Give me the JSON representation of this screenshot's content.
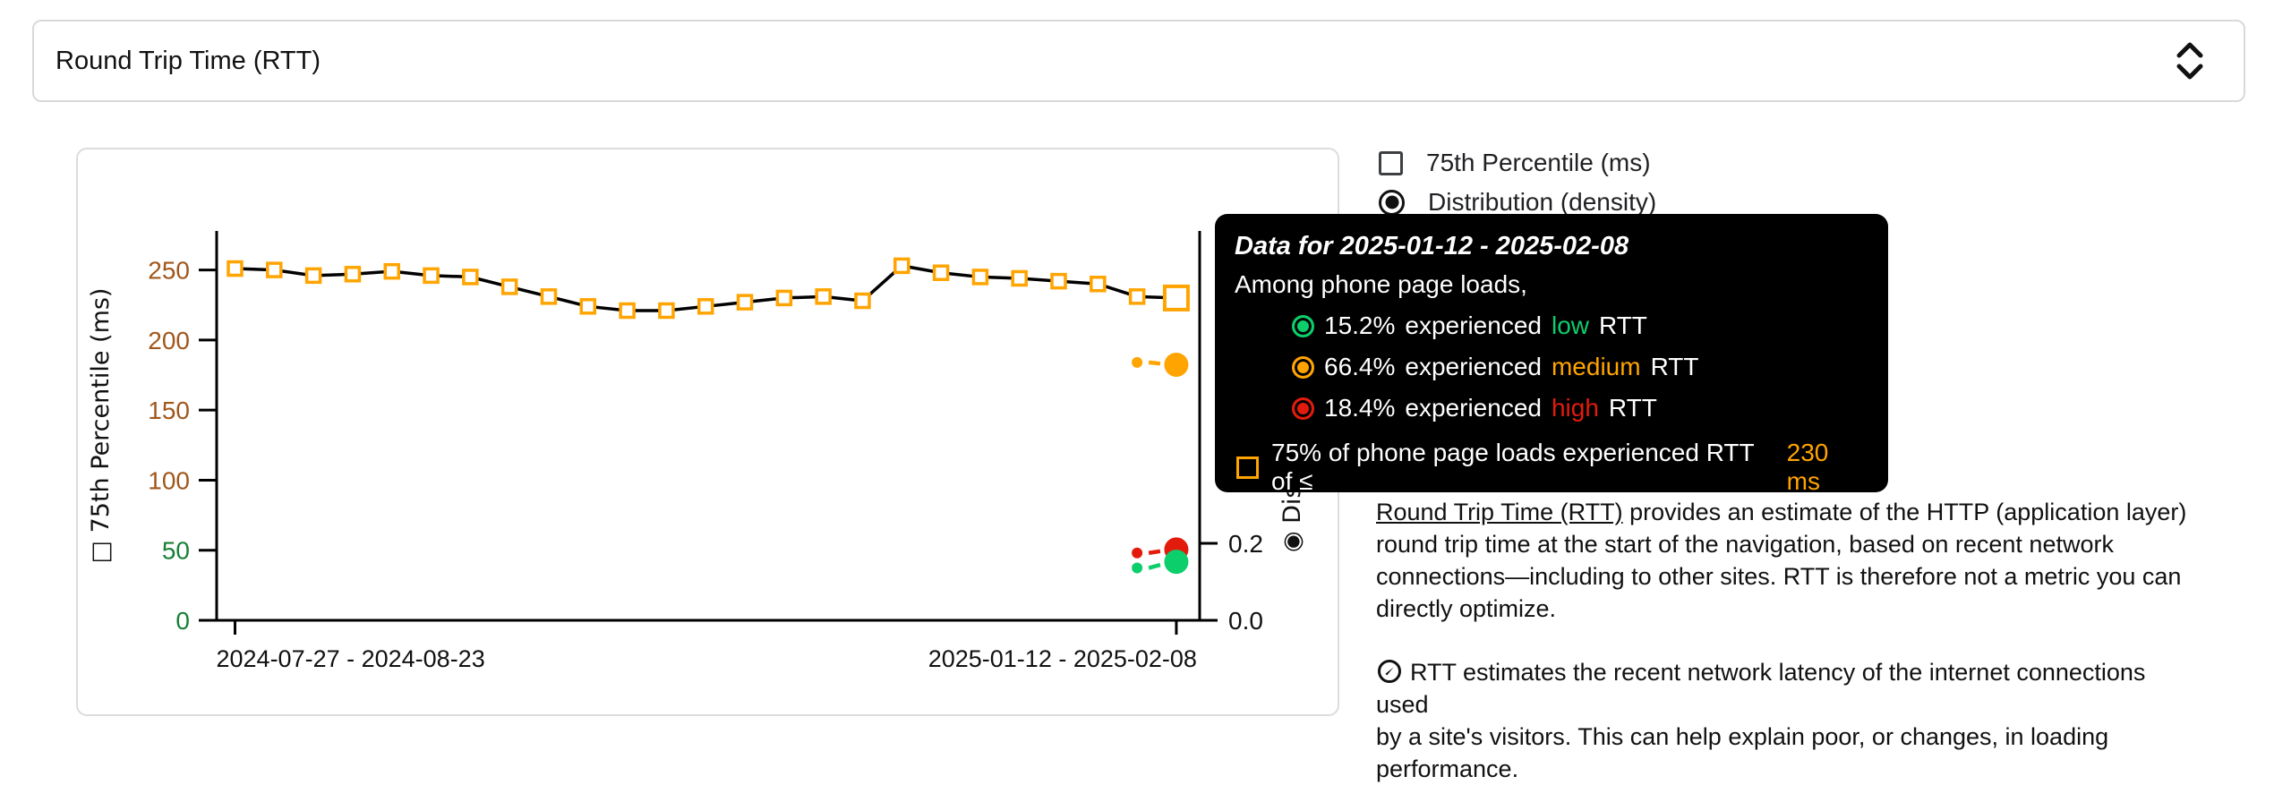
{
  "select": {
    "value": "Round Trip Time (RTT)"
  },
  "legend": {
    "items": [
      {
        "label": "75th Percentile (ms)",
        "control": "checkbox",
        "checked": false
      },
      {
        "label": "Distribution (density)",
        "control": "radio",
        "selected": true
      }
    ]
  },
  "tooltip": {
    "title": "Data for 2025-01-12 - 2025-02-08",
    "subtitle": "Among phone page loads,",
    "rows": [
      {
        "pct": "15.2%",
        "verb": "experienced",
        "word": "low",
        "noun": "RTT",
        "color": "#0cce6b"
      },
      {
        "pct": "66.4%",
        "verb": "experienced",
        "word": "medium",
        "noun": "RTT",
        "color": "#ffa400"
      },
      {
        "pct": "18.4%",
        "verb": "experienced",
        "word": "high",
        "noun": "RTT",
        "color": "#e31b0c"
      }
    ],
    "threshold_row": {
      "prefix": "75% of phone page loads experienced RTT of ≤",
      "value": "230 ms",
      "color": "#ffa400"
    }
  },
  "description": {
    "link_text": "Round Trip Time (RTT)",
    "p1_lines": [
      " provides an estimate of the HTTP (application layer)",
      "round trip time at the start of the navigation, based on recent network",
      "connections—including to other sites. RTT is therefore not a metric you can",
      "directly optimize."
    ],
    "p2_lines": [
      "RTT estimates the recent network latency of the internet connections used",
      "by a site's visitors. This can help explain poor, or changes, in loading",
      "performance."
    ]
  },
  "chart_data": {
    "type": "line",
    "x_tick_labels": [
      "2024-07-27 - 2024-08-23",
      "2025-01-12 - 2025-02-08"
    ],
    "y_axis": {
      "label": "75th Percentile (ms)",
      "marker": "checkbox",
      "ticks": [
        {
          "v": 0,
          "label": "0",
          "color": "#188038"
        },
        {
          "v": 50,
          "label": "50",
          "color": "#188038"
        },
        {
          "v": 100,
          "label": "100",
          "color": "#a0571c"
        },
        {
          "v": 150,
          "label": "150",
          "color": "#a0571c"
        },
        {
          "v": 200,
          "label": "200",
          "color": "#a0571c"
        },
        {
          "v": 250,
          "label": "250",
          "color": "#a0571c"
        }
      ],
      "ylim": [
        0,
        270
      ]
    },
    "density_axis": {
      "label": "Distribution (density)",
      "marker": "radio",
      "ticks": [
        {
          "v": 0.0,
          "label": "0.0"
        },
        {
          "v": 0.2,
          "label": "0.2"
        }
      ],
      "ylim": [
        0,
        1
      ]
    },
    "series": {
      "name": "75th Percentile (ms)",
      "color": "#ffa400",
      "marker": "open-square",
      "values": [
        251,
        250,
        246,
        247,
        249,
        246,
        245,
        238,
        231,
        224,
        221,
        221,
        224,
        227,
        230,
        231,
        228,
        253,
        248,
        245,
        244,
        242,
        240,
        231,
        230
      ]
    },
    "selected_point": {
      "index": 24,
      "period": "2025-01-12 - 2025-02-08",
      "value_ms": 230
    },
    "density_series": [
      {
        "name": "medium",
        "color": "#ffa400",
        "prev": 0.67,
        "value": 0.664
      },
      {
        "name": "high",
        "color": "#e31b0c",
        "prev": 0.175,
        "value": 0.184
      },
      {
        "name": "low",
        "color": "#0cce6b",
        "prev": 0.136,
        "value": 0.152
      }
    ],
    "legend_position": "top-right",
    "grid": false
  }
}
